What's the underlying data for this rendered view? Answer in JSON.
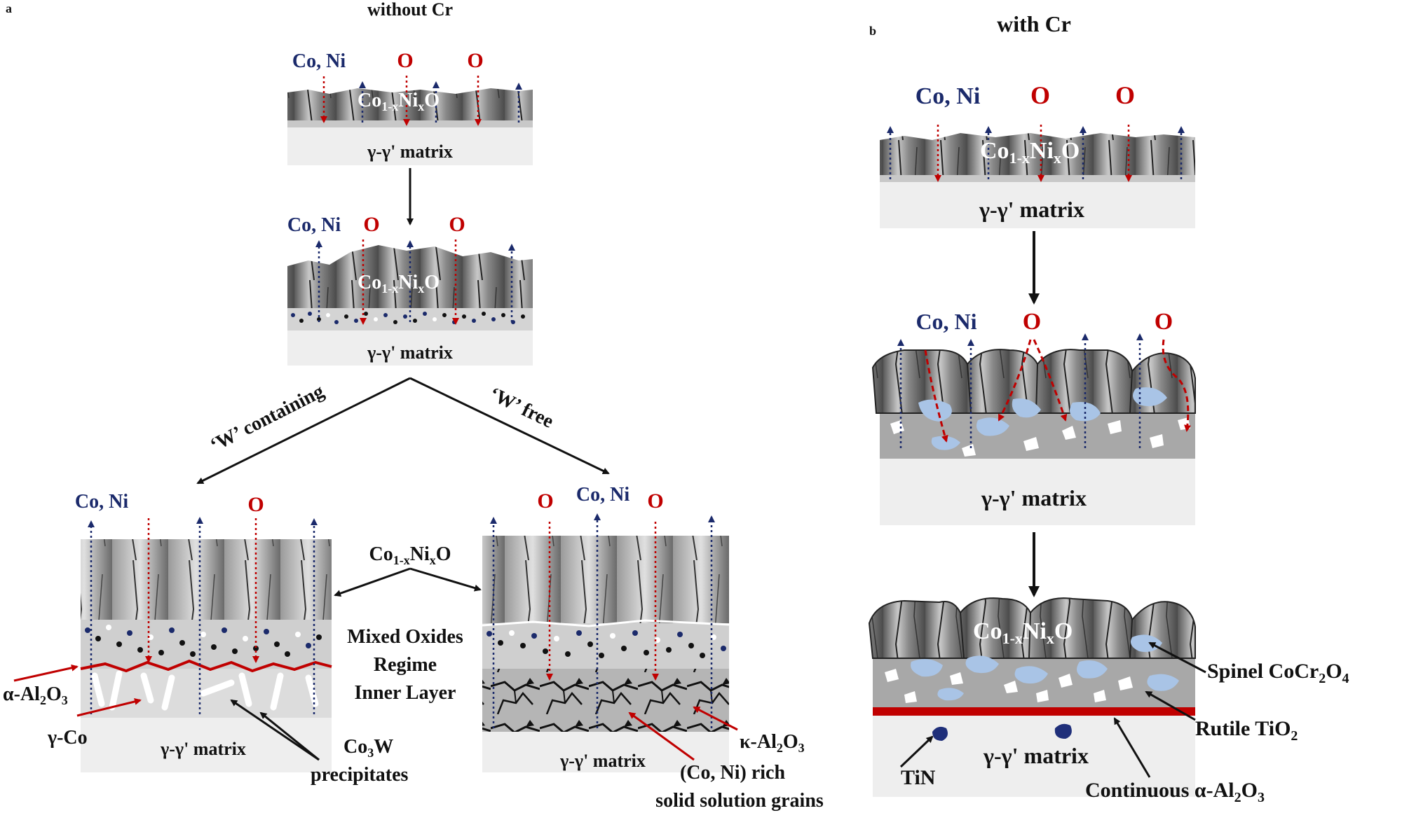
{
  "panel_a": {
    "letter": "a",
    "title": "without Cr",
    "stage1": {
      "species": "Co, Ni",
      "oxygen_1": "O",
      "oxygen_2": "O",
      "oxide_main": "Co",
      "oxide_sub1": "1-x",
      "oxide_mid": "Ni",
      "oxide_sub2": "x",
      "oxide_end": "O",
      "matrix": "γ-γ' matrix"
    },
    "stage2": {
      "species": "Co, Ni",
      "oxygen_1": "O",
      "oxygen_2": "O",
      "oxide_main": "Co",
      "oxide_sub1": "1-x",
      "oxide_mid": "Ni",
      "oxide_sub2": "x",
      "oxide_end": "O",
      "matrix": "γ-γ' matrix"
    },
    "branch_left": "‘W’ containing",
    "branch_right": "‘W’ free",
    "left_stage": {
      "species": "Co, Ni",
      "oxygen": "O",
      "matrix": "γ-γ' matrix"
    },
    "right_stage": {
      "species": "Co, Ni",
      "oxygen_1": "O",
      "oxygen_2": "O",
      "matrix": "γ-γ' matrix"
    },
    "center_oxide": {
      "main": "Co",
      "sub1": "1-x",
      "mid": "Ni",
      "sub2": "x",
      "end": "O"
    },
    "mixed_oxides": [
      "Mixed Oxides",
      "Regime",
      "Inner Layer"
    ],
    "alpha_al2o3": {
      "main": "α-Al",
      "sub1": "2",
      "mid": "O",
      "sub2": "3"
    },
    "gamma_co": "γ-Co",
    "co3w": {
      "main": "Co",
      "sub": "3",
      "end": "W",
      "line2": "precipitates"
    },
    "kappa_al2o3": {
      "main": "κ-Al",
      "sub1": "2",
      "mid": "O",
      "sub2": "3"
    },
    "solid_solution": [
      "(Co, Ni) rich",
      "solid solution grains"
    ]
  },
  "panel_b": {
    "letter": "b",
    "title": "with Cr",
    "stage1": {
      "species": "Co, Ni",
      "oxygen_1": "O",
      "oxygen_2": "O",
      "oxide_main": "Co",
      "oxide_sub1": "1-x",
      "oxide_mid": "Ni",
      "oxide_sub2": "x",
      "oxide_end": "O",
      "matrix": "γ-γ' matrix"
    },
    "stage2": {
      "species": "Co, Ni",
      "oxygen_1": "O",
      "oxygen_2": "O",
      "matrix": "γ-γ' matrix"
    },
    "stage3": {
      "oxide_main": "Co",
      "oxide_sub1": "1-x",
      "oxide_mid": "Ni",
      "oxide_sub2": "x",
      "oxide_end": "O",
      "matrix": "γ-γ' matrix"
    },
    "spinel": {
      "main": "Spinel CoCr",
      "sub1": "2",
      "mid": "O",
      "sub2": "4"
    },
    "rutile": {
      "main": "Rutile TiO",
      "sub": "2"
    },
    "tin": "TiN",
    "continuous": {
      "main": "Continuous α-Al",
      "sub1": "2",
      "mid": "O",
      "sub2": "3"
    }
  },
  "colors": {
    "species_blue": "#1b2a6b",
    "oxygen_red": "#c00000",
    "alumina_red": "#c00000",
    "spinel_blue": "#a9c4e6",
    "tin_blue": "#1f2f7a"
  }
}
